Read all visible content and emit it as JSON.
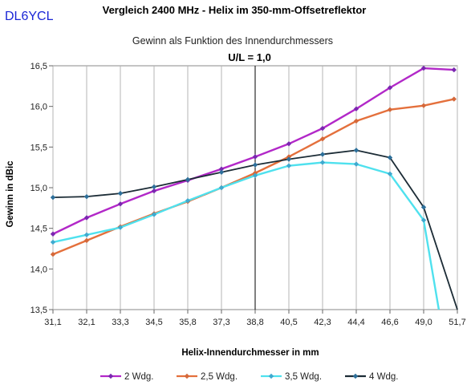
{
  "callsign": "DL6YCL",
  "chart_data": {
    "type": "line",
    "title": "Vergleich 2400 MHz - Helix im 350-mm-Offsetreflektor",
    "subtitle": "Gewinn als Funktion des Innendurchmessers",
    "annotation": "U/L = 1,0",
    "annotation_x": "38,8",
    "xlabel": "Helix-Innendurchmesser in mm",
    "ylabel": "Gewinn in dBic",
    "categories": [
      "31,1",
      "32,1",
      "33,3",
      "34,5",
      "35,8",
      "37,3",
      "38,8",
      "40,5",
      "42,3",
      "44,4",
      "46,6",
      "49,0",
      "51,7"
    ],
    "ylim": [
      13.5,
      16.5
    ],
    "yticks": [
      13.5,
      14.0,
      14.5,
      15.0,
      15.5,
      16.0,
      16.5
    ],
    "ytick_labels": [
      "13,5",
      "14,0",
      "14,5",
      "15,0",
      "15,5",
      "16,0",
      "16,5"
    ],
    "grid": "vertical",
    "legend_position": "bottom",
    "series": [
      {
        "name": "2 Wdg.",
        "color": "#b228c8",
        "x": [
          0,
          1,
          2,
          3,
          4,
          5,
          6,
          7,
          8,
          9,
          10,
          11,
          11.9
        ],
        "y": [
          14.43,
          14.63,
          14.8,
          14.96,
          15.09,
          15.23,
          15.38,
          15.54,
          15.73,
          15.97,
          16.23,
          16.47,
          16.45
        ]
      },
      {
        "name": "2,5 Wdg.",
        "color": "#e4703c",
        "x": [
          0,
          1,
          2,
          3,
          4,
          5,
          6,
          7,
          8,
          9,
          10,
          11,
          11.9
        ],
        "y": [
          14.18,
          14.35,
          14.52,
          14.68,
          14.83,
          15.0,
          15.18,
          15.38,
          15.6,
          15.82,
          15.96,
          16.01,
          16.09
        ]
      },
      {
        "name": "3,5 Wdg.",
        "color": "#4fe1ee",
        "x": [
          0,
          1,
          2,
          3,
          4,
          5,
          6,
          7,
          8,
          9,
          10,
          11,
          11.45
        ],
        "y": [
          14.33,
          14.42,
          14.51,
          14.67,
          14.84,
          15.0,
          15.15,
          15.27,
          15.31,
          15.29,
          15.17,
          14.6,
          13.5
        ]
      },
      {
        "name": "4 Wdg.",
        "color": "#1c2c36",
        "x": [
          0,
          1,
          2,
          3,
          4,
          5,
          6,
          7,
          8,
          9,
          10,
          11,
          12
        ],
        "y": [
          14.88,
          14.89,
          14.93,
          15.01,
          15.1,
          15.19,
          15.28,
          15.35,
          15.41,
          15.46,
          15.37,
          14.76,
          13.5
        ]
      }
    ]
  }
}
